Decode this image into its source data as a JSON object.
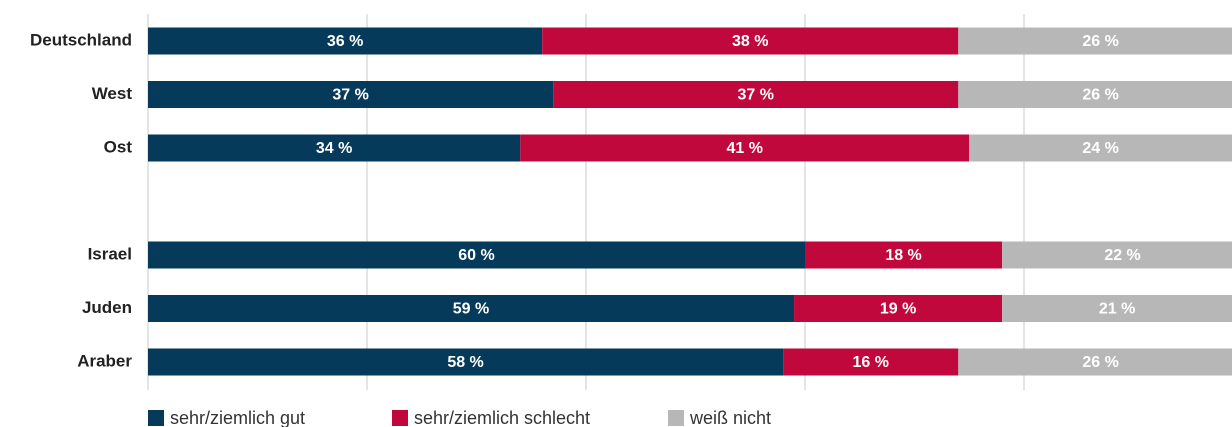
{
  "chart_data": {
    "type": "stacked-barh",
    "categories": [
      "Deutschland",
      "West",
      "Ost",
      null,
      "Israel",
      "Juden",
      "Araber"
    ],
    "series": [
      {
        "name": "sehr/ziemlich gut",
        "color": "#063a5b",
        "values": [
          36,
          37,
          34,
          null,
          60,
          59,
          58
        ],
        "value_labels": [
          "36 %",
          "37 %",
          "34 %",
          null,
          "60 %",
          "59 %",
          "58 %"
        ]
      },
      {
        "name": "sehr/ziemlich schlecht",
        "color": "#c0083c",
        "values": [
          38,
          37,
          41,
          null,
          18,
          19,
          16
        ],
        "value_labels": [
          "38 %",
          "37 %",
          "41 %",
          null,
          "18 %",
          "19 %",
          "16 %"
        ]
      },
      {
        "name": "weiß nicht",
        "color": "#b7b7b7",
        "values": [
          26,
          26,
          24,
          null,
          22,
          21,
          26
        ],
        "value_labels": [
          "26 %",
          "26 %",
          "24 %",
          null,
          "22 %",
          "21 %",
          "26 %"
        ]
      }
    ],
    "xlim": [
      0,
      100
    ],
    "xticks": [
      0,
      20,
      40,
      60,
      80,
      100
    ],
    "grid": true,
    "legend": "bottom-left"
  }
}
